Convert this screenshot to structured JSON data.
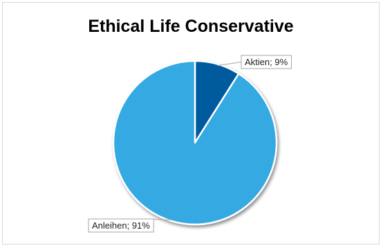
{
  "chart_data": {
    "type": "pie",
    "title": "Ethical Life Conservative",
    "slices": [
      {
        "label": "Aktien",
        "value": 9,
        "display": "Aktien; 9%",
        "color": "#005a9e"
      },
      {
        "label": "Anleihen",
        "value": 91,
        "display": "Anleihen; 91%",
        "color": "#36a9e1"
      }
    ],
    "start_angle_deg": 0,
    "direction": "clockwise",
    "legend": "none",
    "data_labels": "outside-with-leader-lines"
  }
}
